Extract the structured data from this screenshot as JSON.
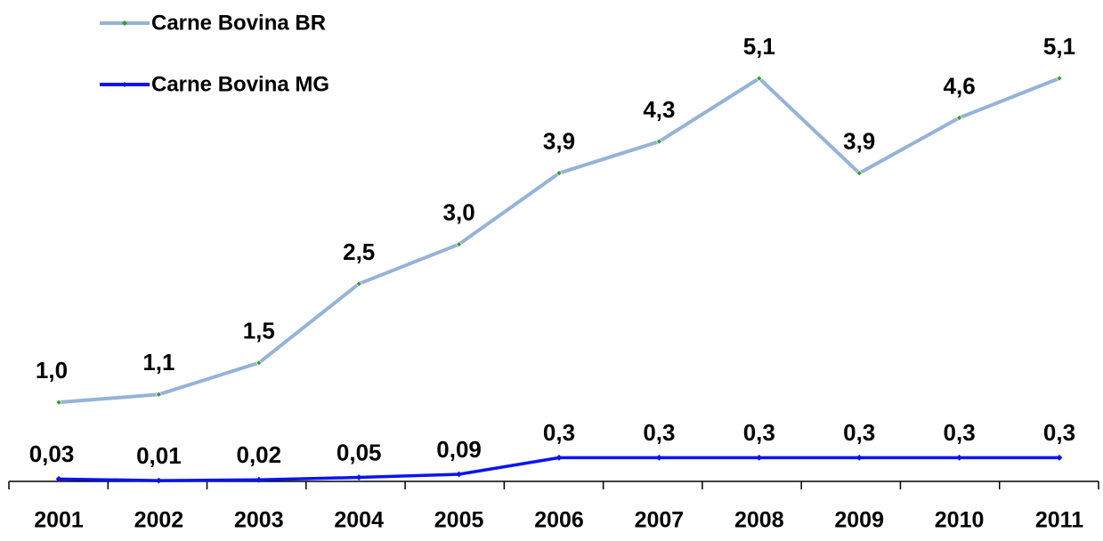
{
  "chart_data": {
    "type": "line",
    "categories": [
      "2001",
      "2002",
      "2003",
      "2004",
      "2005",
      "2006",
      "2007",
      "2008",
      "2009",
      "2010",
      "2011"
    ],
    "series": [
      {
        "name": "Carne Bovina BR",
        "color": "#95b3d7",
        "marker_color": "#2e9e2e",
        "values": [
          1.0,
          1.1,
          1.5,
          2.5,
          3.0,
          3.9,
          4.3,
          5.1,
          3.9,
          4.6,
          5.1
        ],
        "value_labels": [
          "1,0",
          "1,1",
          "1,5",
          "2,5",
          "3,0",
          "3,9",
          "4,3",
          "5,1",
          "3,9",
          "4,6",
          "5,1"
        ]
      },
      {
        "name": "Carne Bovina MG",
        "color": "#0a14f0",
        "marker_color": "#0a14f0",
        "values": [
          0.03,
          0.01,
          0.02,
          0.05,
          0.09,
          0.3,
          0.3,
          0.3,
          0.3,
          0.3,
          0.3
        ],
        "value_labels": [
          "0,03",
          "0,01",
          "0,02",
          "0,05",
          "0,09",
          "0,3",
          "0,3",
          "0,3",
          "0,3",
          "0,3",
          "0,3"
        ]
      }
    ],
    "legend": "top-left"
  }
}
